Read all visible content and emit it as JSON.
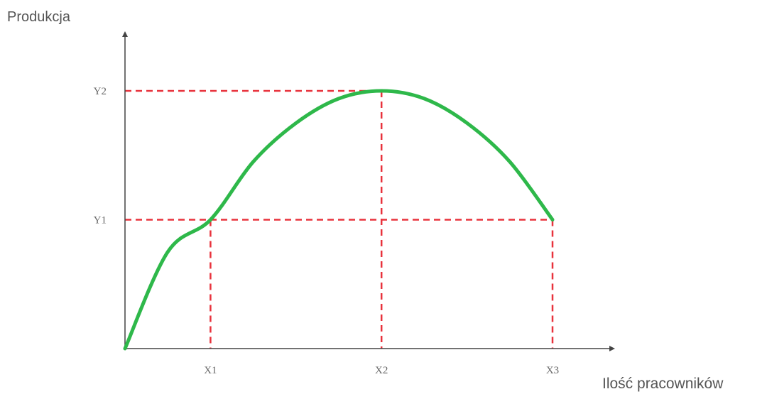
{
  "chart_data": {
    "type": "line",
    "ylabel": "Produkcja",
    "xlabel": "Ilość pracowników",
    "x_tick_labels": [
      "X1",
      "X2",
      "X3"
    ],
    "y_tick_labels": [
      "Y1",
      "Y2"
    ],
    "x_ticks": [
      1,
      3,
      5
    ],
    "y_ticks": [
      1,
      2
    ],
    "xlim": [
      0,
      5.4
    ],
    "ylim": [
      0,
      2.5
    ],
    "series": [
      {
        "x": [
          0,
          0.5,
          1,
          1.5,
          2,
          2.5,
          3,
          3.5,
          4,
          4.5,
          5
        ],
        "y": [
          0,
          0.75,
          1.0,
          1.45,
          1.75,
          1.94,
          2.0,
          1.94,
          1.75,
          1.45,
          1.0
        ]
      }
    ],
    "guide_lines": [
      {
        "label": "Y2",
        "from": [
          0,
          2
        ],
        "to": [
          3,
          2
        ]
      },
      {
        "label": "X2",
        "from": [
          3,
          2
        ],
        "to": [
          3,
          0
        ]
      },
      {
        "label": "Y1",
        "from": [
          0,
          1
        ],
        "to": [
          5,
          1
        ]
      },
      {
        "label": "X1",
        "from": [
          1,
          1
        ],
        "to": [
          1,
          0
        ]
      },
      {
        "label": "X3",
        "from": [
          5,
          1
        ],
        "to": [
          5,
          0
        ]
      }
    ],
    "curve_color": "#2eb84a",
    "guide_color": "#e8323c",
    "axis_color": "#444444",
    "grid": false
  }
}
